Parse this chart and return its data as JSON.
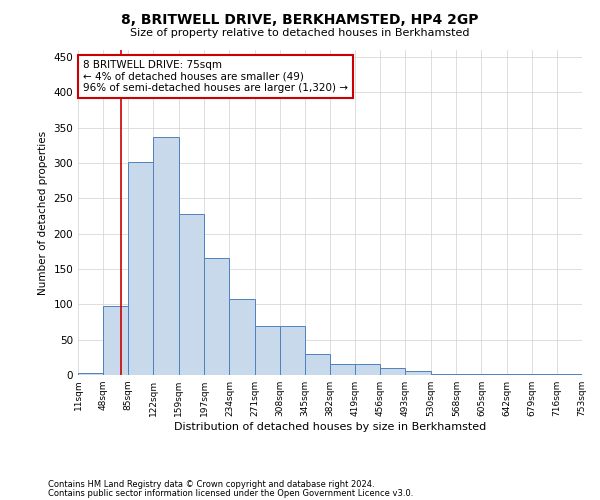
{
  "title": "8, BRITWELL DRIVE, BERKHAMSTED, HP4 2GP",
  "subtitle": "Size of property relative to detached houses in Berkhamsted",
  "xlabel": "Distribution of detached houses by size in Berkhamsted",
  "ylabel": "Number of detached properties",
  "bin_edges": [
    11,
    48,
    85,
    122,
    159,
    197,
    234,
    271,
    308,
    345,
    382,
    419,
    456,
    493,
    530,
    568,
    605,
    642,
    679,
    716,
    753
  ],
  "bar_heights": [
    3,
    97,
    302,
    337,
    228,
    165,
    107,
    70,
    70,
    30,
    15,
    15,
    10,
    5,
    1,
    1,
    1,
    2,
    1,
    1
  ],
  "bar_color": "#c9d9ec",
  "bar_edge_color": "#4f81bd",
  "grid_color": "#d0d0d0",
  "vline_x": 75,
  "vline_color": "#cc0000",
  "annotation_line1": "8 BRITWELL DRIVE: 75sqm",
  "annotation_line2": "← 4% of detached houses are smaller (49)",
  "annotation_line3": "96% of semi-detached houses are larger (1,320) →",
  "annotation_box_color": "#cc0000",
  "ylim": [
    0,
    460
  ],
  "yticks": [
    0,
    50,
    100,
    150,
    200,
    250,
    300,
    350,
    400,
    450
  ],
  "footnote1": "Contains HM Land Registry data © Crown copyright and database right 2024.",
  "footnote2": "Contains public sector information licensed under the Open Government Licence v3.0.",
  "bg_color": "#ffffff"
}
